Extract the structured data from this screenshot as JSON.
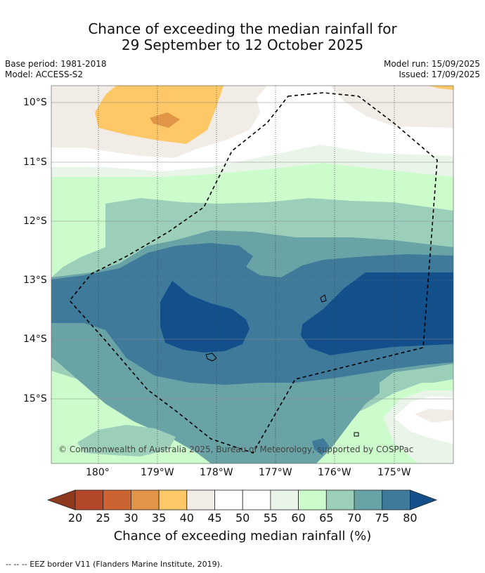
{
  "title": {
    "line1": "Chance of exceeding the median rainfall for",
    "line2": "29 September to 12 October 2025"
  },
  "meta_left": {
    "base_period": "Base period: 1981-2018",
    "model": "Model: ACCESS-S2"
  },
  "meta_right": {
    "model_run": "Model run: 15/09/2025",
    "issued": "Issued: 17/09/2025"
  },
  "map": {
    "lat_labels": [
      "10°S",
      "11°S",
      "12°S",
      "13°S",
      "14°S",
      "15°S"
    ],
    "lon_labels": [
      "180°",
      "179°W",
      "178°W",
      "177°W",
      "176°W",
      "175°W"
    ],
    "copyright": "© Commonwealth of Australia 2025, Bureau of Meteorology, supported by COSPPac"
  },
  "colorbar": {
    "ticks": [
      "20",
      "25",
      "30",
      "35",
      "40",
      "45",
      "50",
      "55",
      "60",
      "65",
      "70",
      "75",
      "80"
    ],
    "colors": {
      "lt20": "#8e3a20",
      "20-25": "#b3472a",
      "25-30": "#cc6333",
      "30-35": "#e09547",
      "35-40": "#fdc865",
      "40-45": "#f1ece6",
      "45-50": "#ffffff",
      "50-55": "#ffffff",
      "55-60": "#eaf5ea",
      "60-65": "#ccfccc",
      "65-70": "#9ccfba",
      "70-75": "#6aa3a6",
      "75-80": "#3f7a9a",
      "gt80": "#124f8b"
    },
    "label": "Chance of exceeding median rainfall (%)"
  },
  "footer": "--  --  -- EEZ border V11 (Flanders Marine Institute, 2019)."
}
